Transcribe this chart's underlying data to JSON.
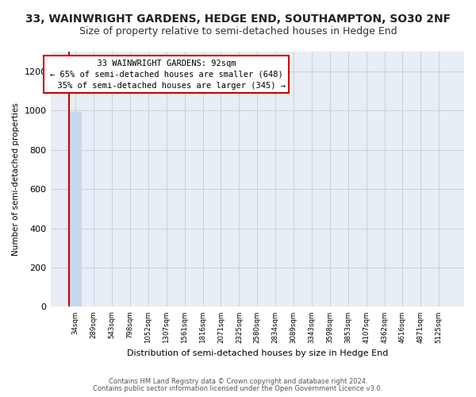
{
  "title": "33, WAINWRIGHT GARDENS, HEDGE END, SOUTHAMPTON, SO30 2NF",
  "subtitle": "Size of property relative to semi-detached houses in Hedge End",
  "xlabel": "Distribution of semi-detached houses by size in Hedge End",
  "ylabel": "Number of semi-detached properties",
  "categories": [
    "34sqm",
    "289sqm",
    "543sqm",
    "798sqm",
    "1052sqm",
    "1307sqm",
    "1561sqm",
    "1816sqm",
    "2071sqm",
    "2325sqm",
    "2580sqm",
    "2834sqm",
    "3089sqm",
    "3343sqm",
    "3598sqm",
    "3853sqm",
    "4107sqm",
    "4362sqm",
    "4616sqm",
    "4871sqm",
    "5125sqm"
  ],
  "values": [
    993,
    0,
    0,
    0,
    0,
    0,
    0,
    0,
    0,
    0,
    0,
    0,
    0,
    0,
    0,
    0,
    0,
    0,
    0,
    0,
    0
  ],
  "bar_color": "#c8d8ec",
  "highlight_line_color": "#cc0000",
  "property_label": "33 WAINWRIGHT GARDENS: 92sqm",
  "smaller_text": "← 65% of semi-detached houses are smaller (648)",
  "larger_text": "  35% of semi-detached houses are larger (345) →",
  "annotation_box_color": "#cc0000",
  "ylim": [
    0,
    1300
  ],
  "yticks": [
    0,
    200,
    400,
    600,
    800,
    1000,
    1200
  ],
  "footnote1": "Contains HM Land Registry data © Crown copyright and database right 2024.",
  "footnote2": "Contains public sector information licensed under the Open Government Licence v3.0.",
  "bg_color": "#ffffff",
  "plot_bg_color": "#e8eef5",
  "title_fontsize": 10,
  "subtitle_fontsize": 9,
  "grid_color": "#c8d0da"
}
